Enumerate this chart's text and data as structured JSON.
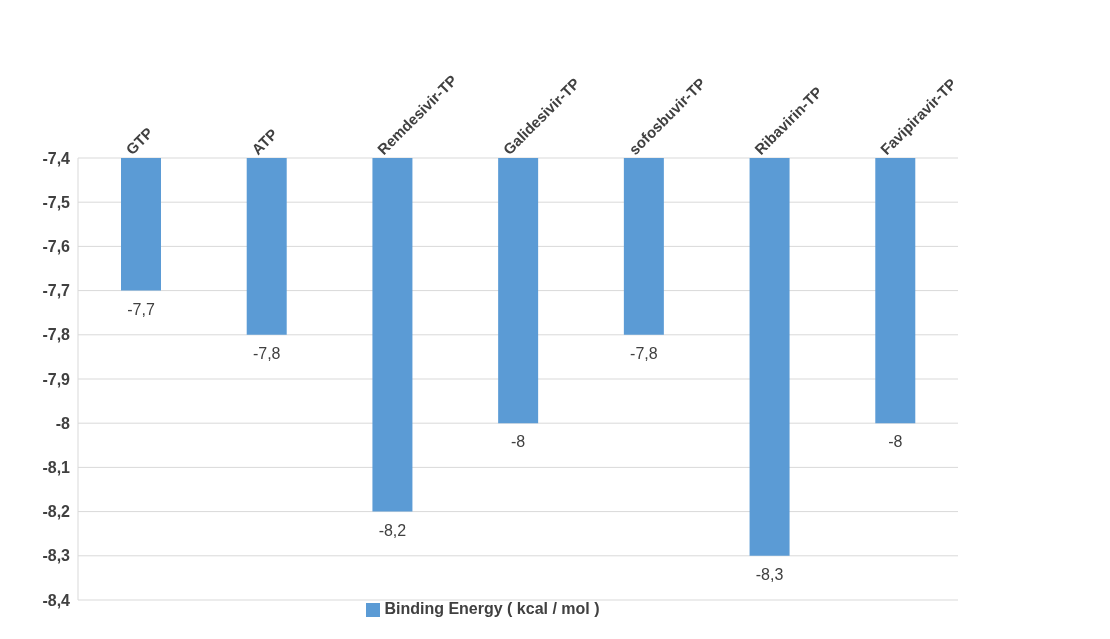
{
  "chart_data": {
    "type": "bar",
    "categories": [
      "GTP",
      "ATP",
      "Remdesivir-TP",
      "Galidesivir-TP",
      "sofosbuvir-TP",
      "Ribavirin-TP",
      "Favipiravir-TP"
    ],
    "series": [
      {
        "name": "Binding Energy ( kcal / mol )",
        "color": "#5b9bd5",
        "values": [
          -7.7,
          -7.8,
          -8.2,
          -8,
          -7.8,
          -8.3,
          -8
        ],
        "value_labels": [
          "-7,7",
          "-7,8",
          "-8,2",
          "-8",
          "-7,8",
          "-8,3",
          "-8"
        ]
      }
    ],
    "ylim": [
      -8.4,
      -7.4
    ],
    "yticks": [
      {
        "value": -8.4,
        "label": "-8,4"
      },
      {
        "value": -8.3,
        "label": "-8,3"
      },
      {
        "value": -8.2,
        "label": "-8,2"
      },
      {
        "value": -8.1,
        "label": "-8,1"
      },
      {
        "value": -8,
        "label": "-8"
      },
      {
        "value": -7.9,
        "label": "-7,9"
      },
      {
        "value": -7.8,
        "label": "-7,8"
      },
      {
        "value": -7.7,
        "label": "-7,7"
      },
      {
        "value": -7.6,
        "label": "-7,6"
      },
      {
        "value": -7.5,
        "label": "-7,5"
      },
      {
        "value": -7.4,
        "label": "-7,4"
      }
    ],
    "grid": "y",
    "legend": "bottom"
  }
}
